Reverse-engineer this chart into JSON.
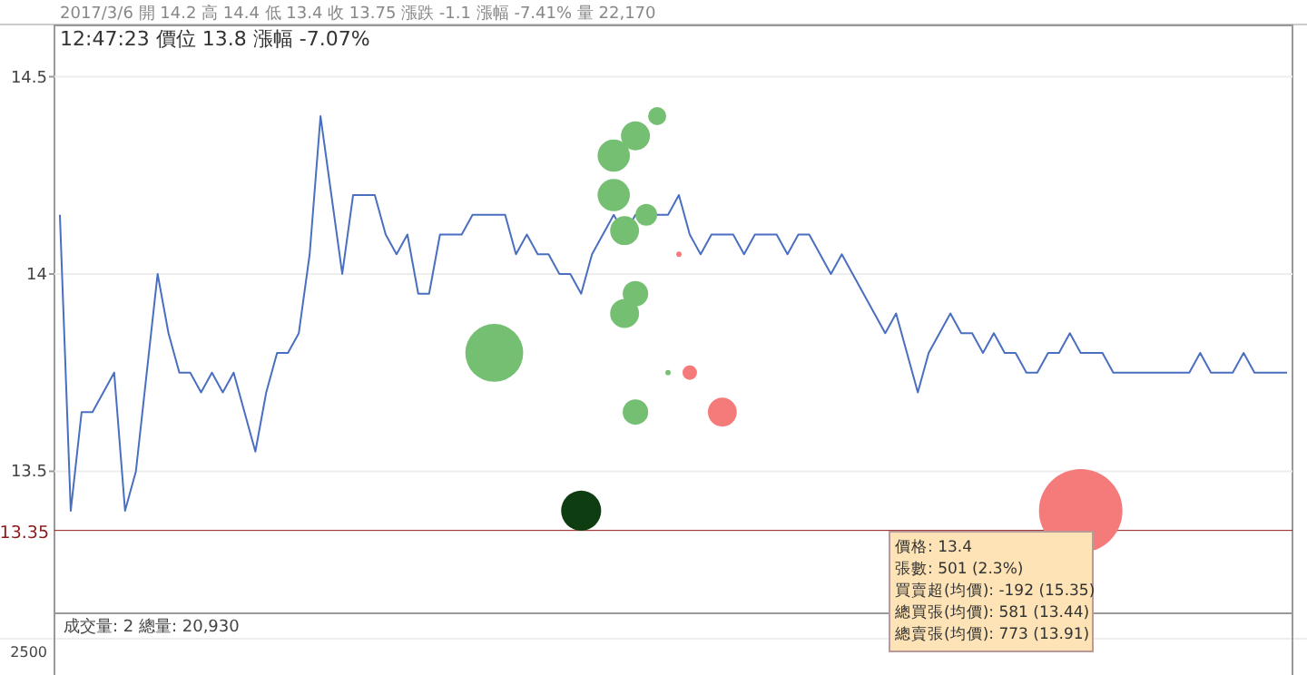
{
  "chart_data": {
    "type": "line",
    "title": "2017/3/6 開 14.2 高 14.4 低 13.4 收 13.75 漲跌 -1.1 漲幅 -7.41% 量 22,170",
    "subtitle": "12:47:23 價位 13.8 漲幅 -7.07%",
    "categories": [
      null,
      null,
      null,
      null,
      null,
      null,
      null,
      null,
      null,
      null,
      null,
      null,
      null,
      null,
      null,
      null,
      null,
      null,
      null,
      null,
      null,
      null,
      null,
      null,
      null,
      null,
      null,
      null,
      null,
      null,
      null,
      null,
      null,
      null,
      null,
      null,
      null,
      null,
      null,
      null,
      null,
      null,
      null,
      null,
      null,
      null,
      null,
      null,
      null,
      null,
      null,
      null,
      null,
      null,
      null,
      null,
      null,
      null,
      null,
      null,
      null,
      null,
      null,
      null,
      null,
      null,
      null,
      null,
      null,
      null,
      null,
      null,
      null,
      null,
      null,
      null,
      null,
      null,
      null,
      null,
      null,
      null,
      null,
      null,
      null,
      null,
      null,
      null,
      null,
      null,
      null,
      null,
      null,
      null,
      null,
      null,
      null,
      null,
      null,
      null,
      null,
      null,
      null,
      null,
      null,
      null,
      null,
      null,
      null,
      null,
      null,
      null,
      null,
      null
    ],
    "ylim": [
      13.14,
      14.63
    ],
    "yticks": [
      13.5,
      14,
      14.5
    ],
    "tick_labels": "y",
    "grid": "y",
    "series": [
      {
        "color": "#4a6fc0",
        "marker": "none",
        "values": [
          14.15,
          13.4,
          13.65,
          13.65,
          13.7,
          13.75,
          13.4,
          13.5,
          13.75,
          14.0,
          13.85,
          13.75,
          13.75,
          13.7,
          13.75,
          13.7,
          13.75,
          13.65,
          13.55,
          13.7,
          13.8,
          13.8,
          13.85,
          14.05,
          14.4,
          14.2,
          14.0,
          14.2,
          14.2,
          14.2,
          14.1,
          14.05,
          14.1,
          13.95,
          13.95,
          14.1,
          14.1,
          14.1,
          14.15,
          14.15,
          14.15,
          14.15,
          14.05,
          14.1,
          14.05,
          14.05,
          14.0,
          14.0,
          13.95,
          14.05,
          14.1,
          14.15,
          14.1,
          14.15,
          14.15,
          14.15,
          14.15,
          14.2,
          14.1,
          14.05,
          14.1,
          14.1,
          14.1,
          14.05,
          14.1,
          14.1,
          14.1,
          14.05,
          14.1,
          14.1,
          14.05,
          14.0,
          14.05,
          14.0,
          13.95,
          13.9,
          13.85,
          13.9,
          13.8,
          13.7,
          13.8,
          13.85,
          13.9,
          13.85,
          13.85,
          13.8,
          13.85,
          13.8,
          13.8,
          13.75,
          13.75,
          13.8,
          13.8,
          13.85,
          13.8,
          13.8,
          13.8,
          13.75,
          13.75,
          13.75,
          13.75,
          13.75,
          13.75,
          13.75,
          13.75,
          13.8,
          13.75,
          13.75,
          13.75,
          13.8,
          13.75,
          13.75,
          13.75,
          13.75
        ]
      },
      {
        "type": "bubble",
        "color": "#74bf72",
        "values": [
          null,
          null,
          null,
          null,
          null,
          null,
          null,
          null,
          null,
          null,
          null,
          null,
          null,
          null,
          null,
          null,
          null,
          null,
          null,
          null,
          null,
          null,
          null,
          null,
          null,
          null,
          null,
          null,
          null,
          null,
          null,
          null,
          null,
          null,
          null,
          null,
          null,
          null,
          null,
          null,
          13.8,
          null,
          null,
          null,
          null,
          null,
          null,
          null,
          null,
          null,
          null,
          14.3,
          13.9,
          14.35,
          14.15,
          14.4,
          13.75,
          null,
          null,
          null,
          null,
          null,
          null,
          null,
          null,
          null,
          null,
          null,
          null,
          null,
          null,
          null,
          null,
          null,
          null,
          null,
          null,
          null,
          null,
          null,
          null,
          null,
          null,
          null,
          null,
          null,
          null,
          null,
          null,
          null,
          null,
          null,
          null,
          null,
          null,
          null,
          null,
          null,
          null,
          null,
          null,
          null,
          null,
          null,
          null,
          null,
          null,
          null,
          null,
          null,
          null,
          null,
          null,
          null
        ],
        "sizes": [
          null,
          null,
          null,
          null,
          null,
          null,
          null,
          null,
          null,
          null,
          null,
          null,
          null,
          null,
          null,
          null,
          null,
          null,
          null,
          null,
          null,
          null,
          null,
          null,
          null,
          null,
          null,
          null,
          null,
          null,
          null,
          null,
          null,
          null,
          null,
          null,
          null,
          null,
          null,
          null,
          0.48,
          null,
          null,
          null,
          null,
          null,
          null,
          null,
          null,
          null,
          null,
          0.15,
          0.12,
          0.12,
          0.068,
          0.047,
          0.004,
          null,
          null,
          null,
          null,
          null,
          null,
          null,
          null,
          null,
          null,
          null,
          null,
          null,
          null,
          null,
          null,
          null,
          null,
          null,
          null,
          null,
          null,
          null,
          null,
          null,
          null,
          null,
          null,
          null,
          null,
          null,
          null,
          null,
          null,
          null,
          null,
          null,
          null,
          null,
          null,
          null,
          null,
          null,
          null,
          null,
          null,
          null,
          null,
          null,
          null,
          null,
          null,
          null,
          null,
          null,
          null,
          null
        ]
      },
      {
        "type": "bubble",
        "color": "#74bf72",
        "values": [
          null,
          null,
          null,
          null,
          null,
          null,
          null,
          null,
          null,
          null,
          null,
          null,
          null,
          null,
          null,
          null,
          null,
          null,
          null,
          null,
          null,
          null,
          null,
          null,
          null,
          null,
          null,
          null,
          null,
          null,
          null,
          null,
          null,
          null,
          null,
          null,
          null,
          null,
          null,
          null,
          null,
          null,
          null,
          null,
          null,
          null,
          null,
          null,
          null,
          null,
          null,
          14.2,
          14.11,
          13.95,
          null,
          null,
          null,
          null,
          null,
          null,
          null,
          null,
          null,
          null,
          null,
          null,
          null,
          null,
          null,
          null,
          null,
          null,
          null,
          null,
          null,
          null,
          null,
          null,
          null,
          null,
          null,
          null,
          null,
          null,
          null,
          null,
          null,
          null,
          null,
          null,
          null,
          null,
          null,
          null,
          null,
          null,
          null,
          null,
          null,
          null,
          null,
          null,
          null,
          null,
          null,
          null,
          null,
          null,
          null,
          null,
          null,
          null,
          null,
          null
        ],
        "sizes": [
          null,
          null,
          null,
          null,
          null,
          null,
          null,
          null,
          null,
          null,
          null,
          null,
          null,
          null,
          null,
          null,
          null,
          null,
          null,
          null,
          null,
          null,
          null,
          null,
          null,
          null,
          null,
          null,
          null,
          null,
          null,
          null,
          null,
          null,
          null,
          null,
          null,
          null,
          null,
          null,
          null,
          null,
          null,
          null,
          null,
          null,
          null,
          null,
          null,
          null,
          null,
          0.15,
          0.12,
          0.093,
          null,
          null,
          null,
          null,
          null,
          null,
          null,
          null,
          null,
          null,
          null,
          null,
          null,
          null,
          null,
          null,
          null,
          null,
          null,
          null,
          null,
          null,
          null,
          null,
          null,
          null,
          null,
          null,
          null,
          null,
          null,
          null,
          null,
          null,
          null,
          null,
          null,
          null,
          null,
          null,
          null,
          null,
          null,
          null,
          null,
          null,
          null,
          null,
          null,
          null,
          null,
          null,
          null,
          null,
          null,
          null,
          null,
          null,
          null,
          null
        ]
      },
      {
        "type": "bubble",
        "color": "#74bf72",
        "values": [
          null,
          null,
          null,
          null,
          null,
          null,
          null,
          null,
          null,
          null,
          null,
          null,
          null,
          null,
          null,
          null,
          null,
          null,
          null,
          null,
          null,
          null,
          null,
          null,
          null,
          null,
          null,
          null,
          null,
          null,
          null,
          null,
          null,
          null,
          null,
          null,
          null,
          null,
          null,
          null,
          null,
          null,
          null,
          null,
          null,
          null,
          null,
          null,
          null,
          null,
          null,
          null,
          null,
          13.65,
          null,
          null,
          null,
          null,
          null,
          null,
          null,
          null,
          null,
          null,
          null,
          null,
          null,
          null,
          null,
          null,
          null,
          null,
          null,
          null,
          null,
          null,
          null,
          null,
          null,
          null,
          null,
          null,
          null,
          null,
          null,
          null,
          null,
          null,
          null,
          null,
          null,
          null,
          null,
          null,
          null,
          null,
          null,
          null,
          null,
          null,
          null,
          null,
          null,
          null,
          null,
          null,
          null,
          null,
          null,
          null,
          null,
          null,
          null,
          null
        ],
        "sizes": [
          null,
          null,
          null,
          null,
          null,
          null,
          null,
          null,
          null,
          null,
          null,
          null,
          null,
          null,
          null,
          null,
          null,
          null,
          null,
          null,
          null,
          null,
          null,
          null,
          null,
          null,
          null,
          null,
          null,
          null,
          null,
          null,
          null,
          null,
          null,
          null,
          null,
          null,
          null,
          null,
          null,
          null,
          null,
          null,
          null,
          null,
          null,
          null,
          null,
          null,
          null,
          null,
          null,
          0.093,
          null,
          null,
          null,
          null,
          null,
          null,
          null,
          null,
          null,
          null,
          null,
          null,
          null,
          null,
          null,
          null,
          null,
          null,
          null,
          null,
          null,
          null,
          null,
          null,
          null,
          null,
          null,
          null,
          null,
          null,
          null,
          null,
          null,
          null,
          null,
          null,
          null,
          null,
          null,
          null,
          null,
          null,
          null,
          null,
          null,
          null,
          null,
          null,
          null,
          null,
          null,
          null,
          null,
          null,
          null,
          null,
          null,
          null,
          null,
          null
        ]
      },
      {
        "type": "bubble",
        "color": "#0d3d10",
        "values": [
          null,
          null,
          null,
          null,
          null,
          null,
          null,
          null,
          null,
          null,
          null,
          null,
          null,
          null,
          null,
          null,
          null,
          null,
          null,
          null,
          null,
          null,
          null,
          null,
          null,
          null,
          null,
          null,
          null,
          null,
          null,
          null,
          null,
          null,
          null,
          null,
          null,
          null,
          null,
          null,
          null,
          null,
          null,
          null,
          null,
          null,
          null,
          null,
          13.4,
          null,
          null,
          null,
          null,
          null,
          null,
          null,
          null,
          null,
          null,
          null,
          null,
          null,
          null,
          null,
          null,
          null,
          null,
          null,
          null,
          null,
          null,
          null,
          null,
          null,
          null,
          null,
          null,
          null,
          null,
          null,
          null,
          null,
          null,
          null,
          null,
          null,
          null,
          null,
          null,
          null,
          null,
          null,
          null,
          null,
          null,
          null,
          null,
          null,
          null,
          null,
          null,
          null,
          null,
          null,
          null,
          null,
          null,
          null,
          null,
          null,
          null,
          null,
          null,
          null
        ],
        "sizes": [
          null,
          null,
          null,
          null,
          null,
          null,
          null,
          null,
          null,
          null,
          null,
          null,
          null,
          null,
          null,
          null,
          null,
          null,
          null,
          null,
          null,
          null,
          null,
          null,
          null,
          null,
          null,
          null,
          null,
          null,
          null,
          null,
          null,
          null,
          null,
          null,
          null,
          null,
          null,
          null,
          null,
          null,
          null,
          null,
          null,
          null,
          null,
          null,
          0.23,
          null,
          null,
          null,
          null,
          null,
          null,
          null,
          null,
          null,
          null,
          null,
          null,
          null,
          null,
          null,
          null,
          null,
          null,
          null,
          null,
          null,
          null,
          null,
          null,
          null,
          null,
          null,
          null,
          null,
          null,
          null,
          null,
          null,
          null,
          null,
          null,
          null,
          null,
          null,
          null,
          null,
          null,
          null,
          null,
          null,
          null,
          null,
          null,
          null,
          null,
          null,
          null,
          null,
          null,
          null,
          null,
          null,
          null,
          null,
          null,
          null,
          null,
          null,
          null,
          null
        ]
      },
      {
        "type": "bubble",
        "color": "#f57b7b",
        "values": [
          null,
          null,
          null,
          null,
          null,
          null,
          null,
          null,
          null,
          null,
          null,
          null,
          null,
          null,
          null,
          null,
          null,
          null,
          null,
          null,
          null,
          null,
          null,
          null,
          null,
          null,
          null,
          null,
          null,
          null,
          null,
          null,
          null,
          null,
          null,
          null,
          null,
          null,
          null,
          null,
          null,
          null,
          null,
          null,
          null,
          null,
          null,
          null,
          null,
          null,
          null,
          null,
          null,
          null,
          null,
          null,
          null,
          14.05,
          13.75,
          null,
          null,
          13.65,
          null,
          null,
          null,
          null,
          null,
          null,
          null,
          null,
          null,
          null,
          null,
          null,
          null,
          null,
          null,
          null,
          null,
          null,
          null,
          null,
          null,
          null,
          null,
          null,
          null,
          null,
          null,
          null,
          null,
          null,
          null,
          null,
          13.4,
          null,
          null,
          null,
          null,
          null,
          null,
          null,
          null,
          null,
          null,
          null,
          null,
          null,
          null,
          null,
          null,
          null,
          null,
          null
        ],
        "sizes": [
          null,
          null,
          null,
          null,
          null,
          null,
          null,
          null,
          null,
          null,
          null,
          null,
          null,
          null,
          null,
          null,
          null,
          null,
          null,
          null,
          null,
          null,
          null,
          null,
          null,
          null,
          null,
          null,
          null,
          null,
          null,
          null,
          null,
          null,
          null,
          null,
          null,
          null,
          null,
          null,
          null,
          null,
          null,
          null,
          null,
          null,
          null,
          null,
          null,
          null,
          null,
          null,
          null,
          null,
          null,
          null,
          null,
          0.004,
          0.03,
          null,
          null,
          0.12,
          null,
          null,
          null,
          null,
          null,
          null,
          null,
          null,
          null,
          null,
          null,
          null,
          null,
          null,
          null,
          null,
          null,
          null,
          null,
          null,
          null,
          null,
          null,
          null,
          null,
          null,
          null,
          null,
          null,
          null,
          null,
          null,
          1,
          null,
          null,
          null,
          null,
          null,
          null,
          null,
          null,
          null,
          null,
          null,
          null,
          null,
          null,
          null,
          null,
          null,
          null,
          null
        ]
      }
    ],
    "ref_lines": [
      {
        "axis": "y",
        "value": 13.35,
        "label": "13.35",
        "color": "#8b1a1a"
      }
    ],
    "annotations": [
      "成交量: 2  總量: 20,930",
      "2500",
      "價格: 13.4",
      "張數: 501 (2.3%)",
      "買賣超(均價): -192 (15.35)",
      "總買張(均價): 581 (13.44)",
      "總賣張(均價): 773 (13.91)"
    ]
  }
}
